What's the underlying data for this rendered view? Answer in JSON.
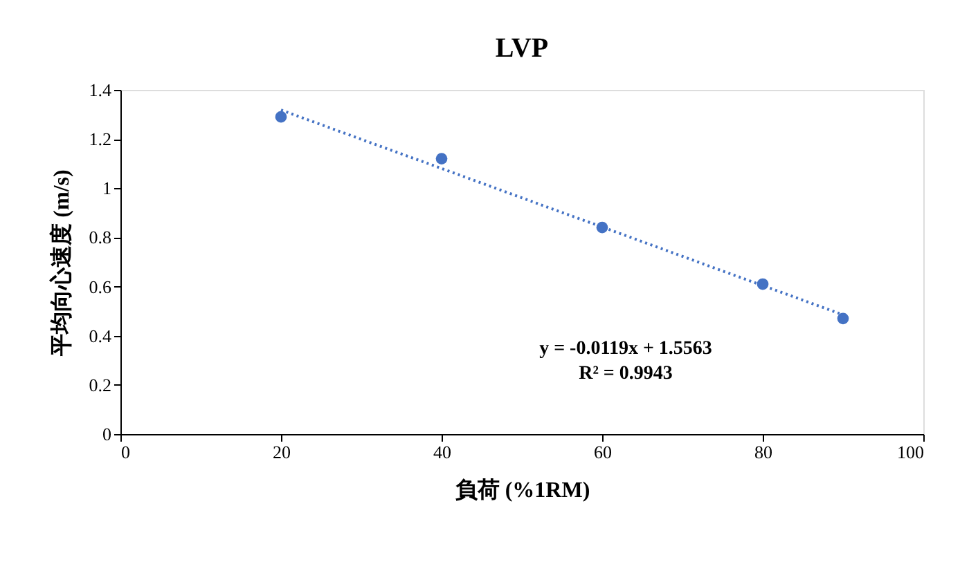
{
  "chart_data": {
    "type": "scatter",
    "title": "LVP",
    "xlabel": "負荷 (%1RM)",
    "ylabel": "平均向心速度 (m/s)",
    "x": [
      20,
      40,
      60,
      80,
      90
    ],
    "series": [
      {
        "color": "#4472c4",
        "values": [
          1.29,
          1.12,
          0.84,
          0.61,
          0.47
        ],
        "marker": "circle"
      },
      {
        "type": "line",
        "color": "#4472c4",
        "x": [
          20,
          90
        ],
        "values": [
          1.318,
          0.485
        ],
        "line_style": "dotted",
        "marker": "none"
      }
    ],
    "xlim": [
      0,
      100
    ],
    "xticks": [
      0,
      20,
      40,
      60,
      80,
      100
    ],
    "ylim": [
      0,
      1.4
    ],
    "yticks": [
      0,
      0.2,
      0.4,
      0.6,
      0.8,
      1,
      1.2,
      1.4
    ],
    "grid": false,
    "annotations": [
      "y = -0.0119x + 1.5563",
      "R² = 0.9943"
    ]
  }
}
